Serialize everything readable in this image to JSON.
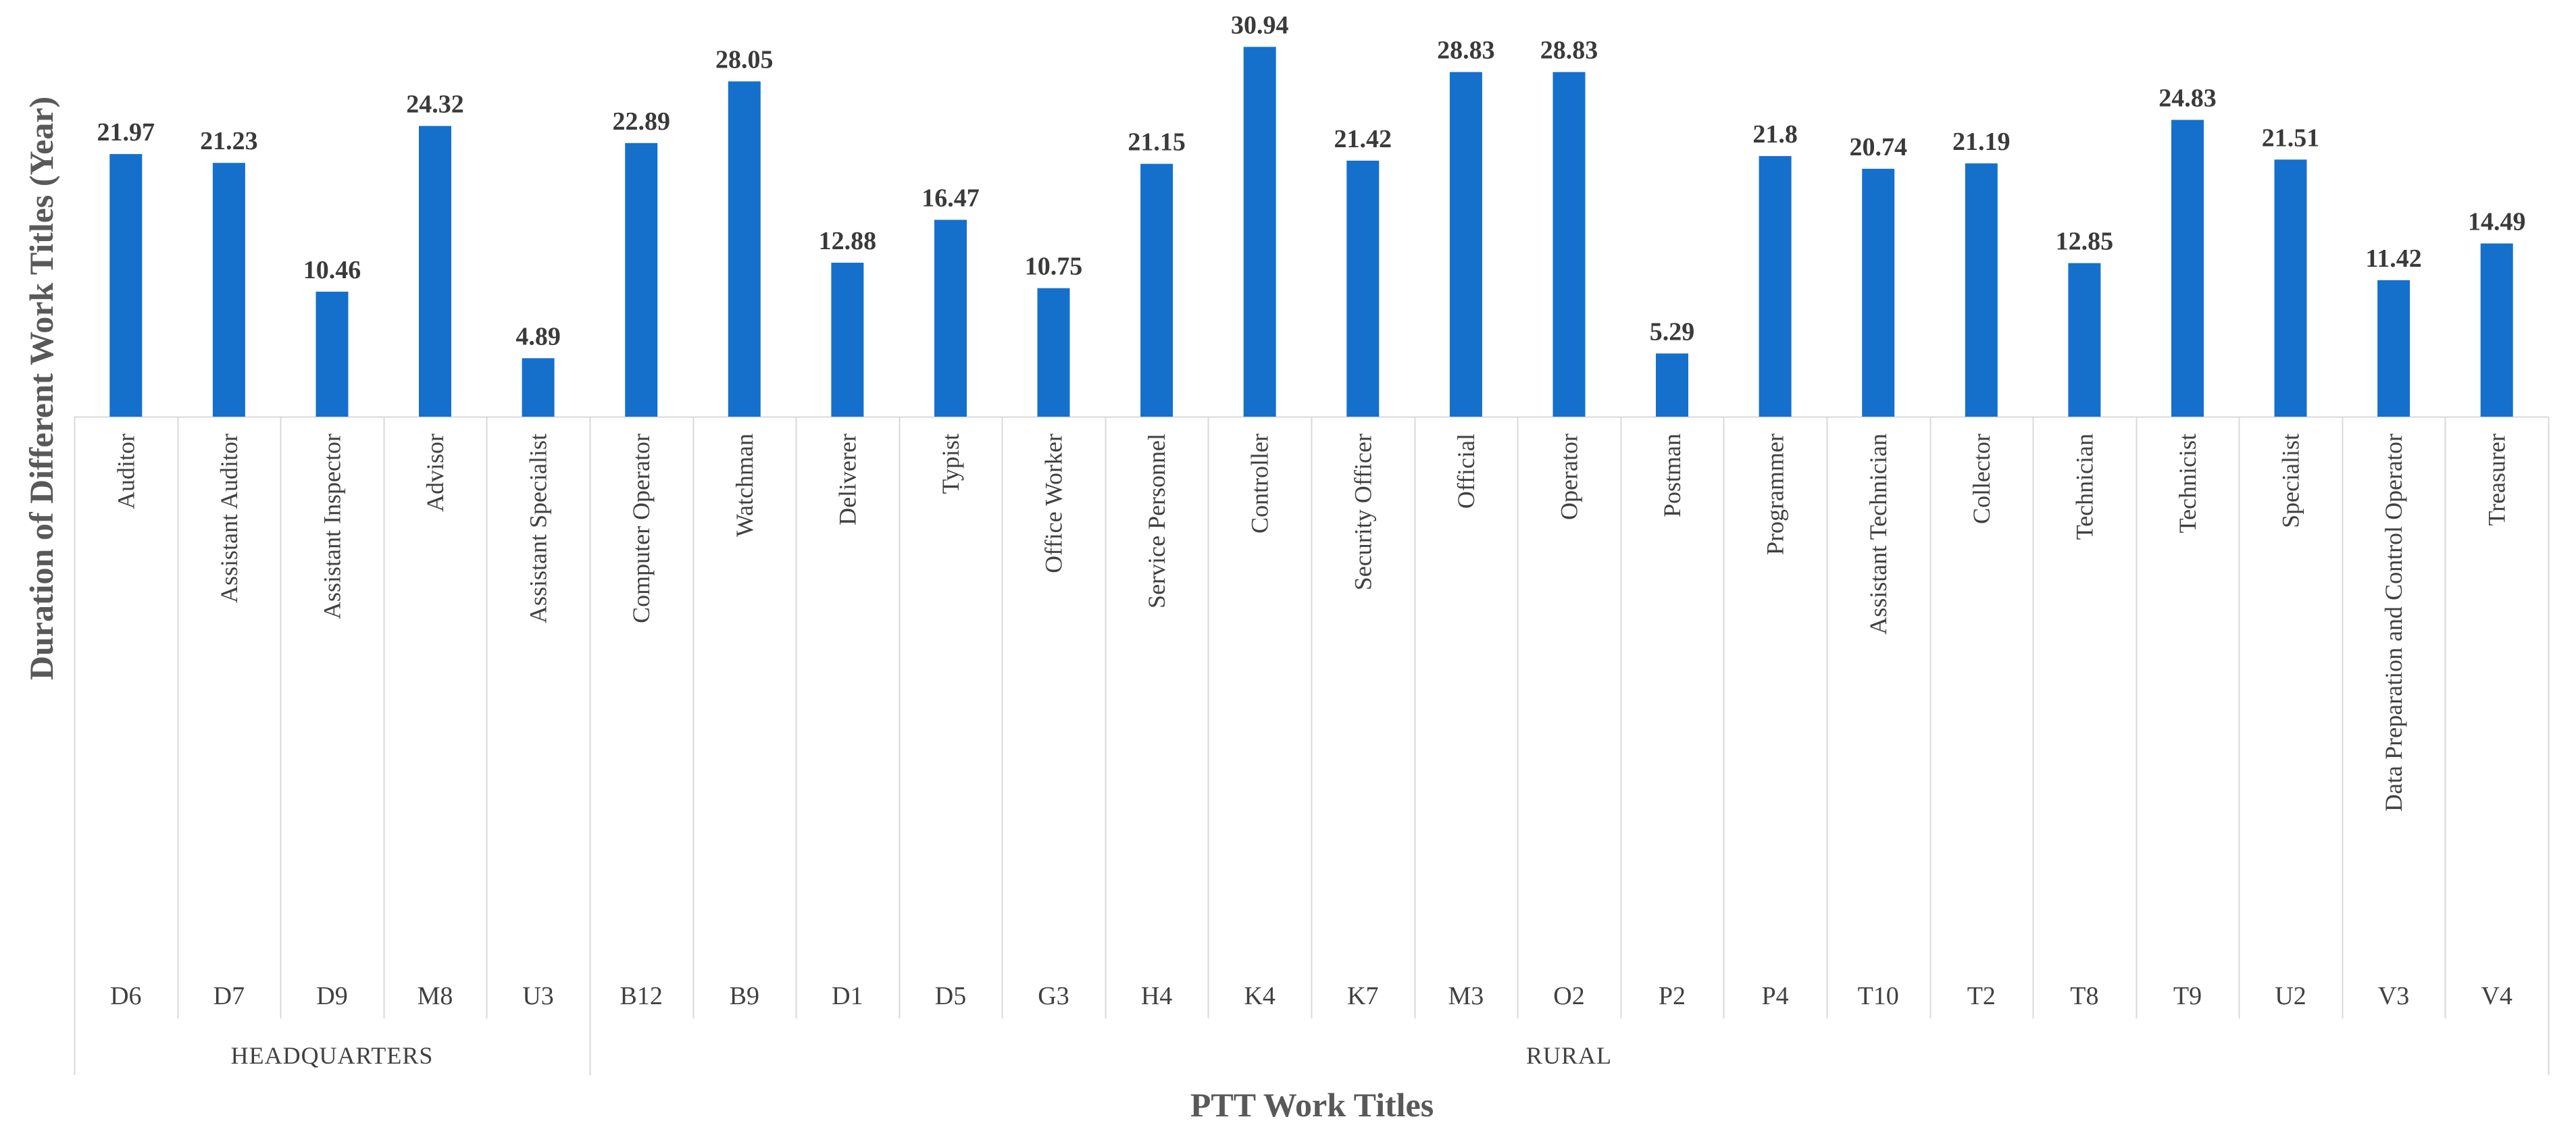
{
  "chart_data": {
    "type": "bar",
    "ylabel": "Duration of Different Work Titles (Year)",
    "xlabel": "PTT Work Titles",
    "bar_color": "#1570CC",
    "ylim": [
      0,
      31.5
    ],
    "grid": false,
    "legend": "none",
    "groups": [
      {
        "name": "HEADQUARTERS",
        "count": 5
      },
      {
        "name": "RURAL",
        "count": 19
      }
    ],
    "codes": [
      "D6",
      "D7",
      "D9",
      "M8",
      "U3",
      "B12",
      "B9",
      "D1",
      "D5",
      "G3",
      "H4",
      "K4",
      "K7",
      "M3",
      "O2",
      "P2",
      "P4",
      "T10",
      "T2",
      "T8",
      "T9",
      "U2",
      "V3",
      "V4"
    ],
    "titles": [
      "Auditor",
      "Assistant Auditor",
      "Assistant Inspector",
      "Advisor",
      "Assistant Specialist",
      "Computer Operator",
      "Watchman",
      "Deliverer",
      "Typist",
      "Office Worker",
      "Service Personnel",
      "Controller",
      "Security Officer",
      "Official",
      "Operator",
      "Postman",
      "Programmer",
      "Assistant Technician",
      "Collector",
      "Technician",
      "Technicist",
      "Specialist",
      "Data Preparation and Control Operator",
      "Treasurer"
    ],
    "values": [
      21.97,
      21.23,
      10.46,
      24.32,
      4.89,
      22.89,
      28.05,
      12.88,
      16.47,
      10.75,
      21.15,
      30.94,
      21.42,
      28.83,
      28.83,
      5.29,
      21.8,
      20.74,
      21.19,
      12.85,
      24.83,
      21.51,
      11.42,
      14.49
    ],
    "value_labels": [
      "21.97",
      "21.23",
      "10.46",
      "24.32",
      "4.89",
      "22.89",
      "28.05",
      "12.88",
      "16.47",
      "10.75",
      "21.15",
      "30.94",
      "21.42",
      "28.83",
      "28.83",
      "5.29",
      "21.8",
      "20.74",
      "21.19",
      "12.85",
      "24.83",
      "21.51",
      "11.42",
      "14.49"
    ]
  }
}
